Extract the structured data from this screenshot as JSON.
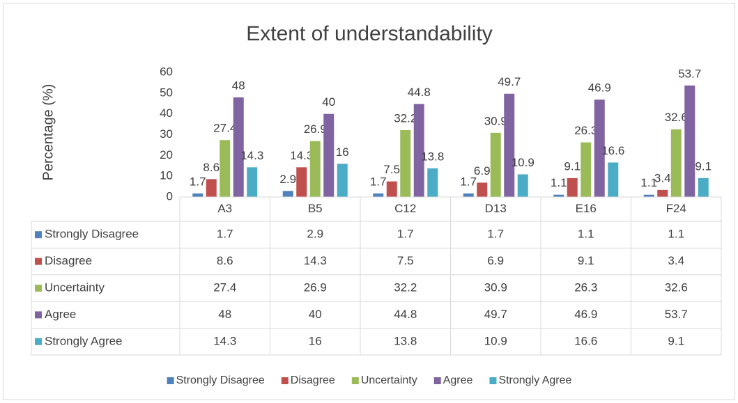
{
  "chart_data": {
    "type": "bar",
    "title": "Extent of understandability",
    "y_label": "Percentage (%)",
    "categories": [
      "A3",
      "B5",
      "C12",
      "D13",
      "E16",
      "F24"
    ],
    "series": [
      {
        "name": "Strongly Disagree",
        "color": "#4f81bd",
        "values": [
          1.7,
          2.9,
          1.7,
          1.7,
          1.1,
          1.1
        ]
      },
      {
        "name": "Disagree",
        "color": "#c0504d",
        "values": [
          8.6,
          14.3,
          7.5,
          6.9,
          9.1,
          3.4
        ]
      },
      {
        "name": "Uncertainty",
        "color": "#9bbb59",
        "values": [
          27.4,
          26.9,
          32.2,
          30.9,
          26.3,
          32.6
        ]
      },
      {
        "name": "Agree",
        "color": "#8064a2",
        "values": [
          48,
          40,
          44.8,
          49.7,
          46.9,
          53.7
        ]
      },
      {
        "name": "Strongly Agree",
        "color": "#4bacc6",
        "values": [
          14.3,
          16,
          13.8,
          10.9,
          16.6,
          9.1
        ]
      }
    ],
    "ylim": [
      0,
      60
    ],
    "yticks": [
      0,
      10,
      20,
      30,
      40,
      50,
      60
    ],
    "grid": false,
    "legend": "bottom",
    "data_table": true
  }
}
